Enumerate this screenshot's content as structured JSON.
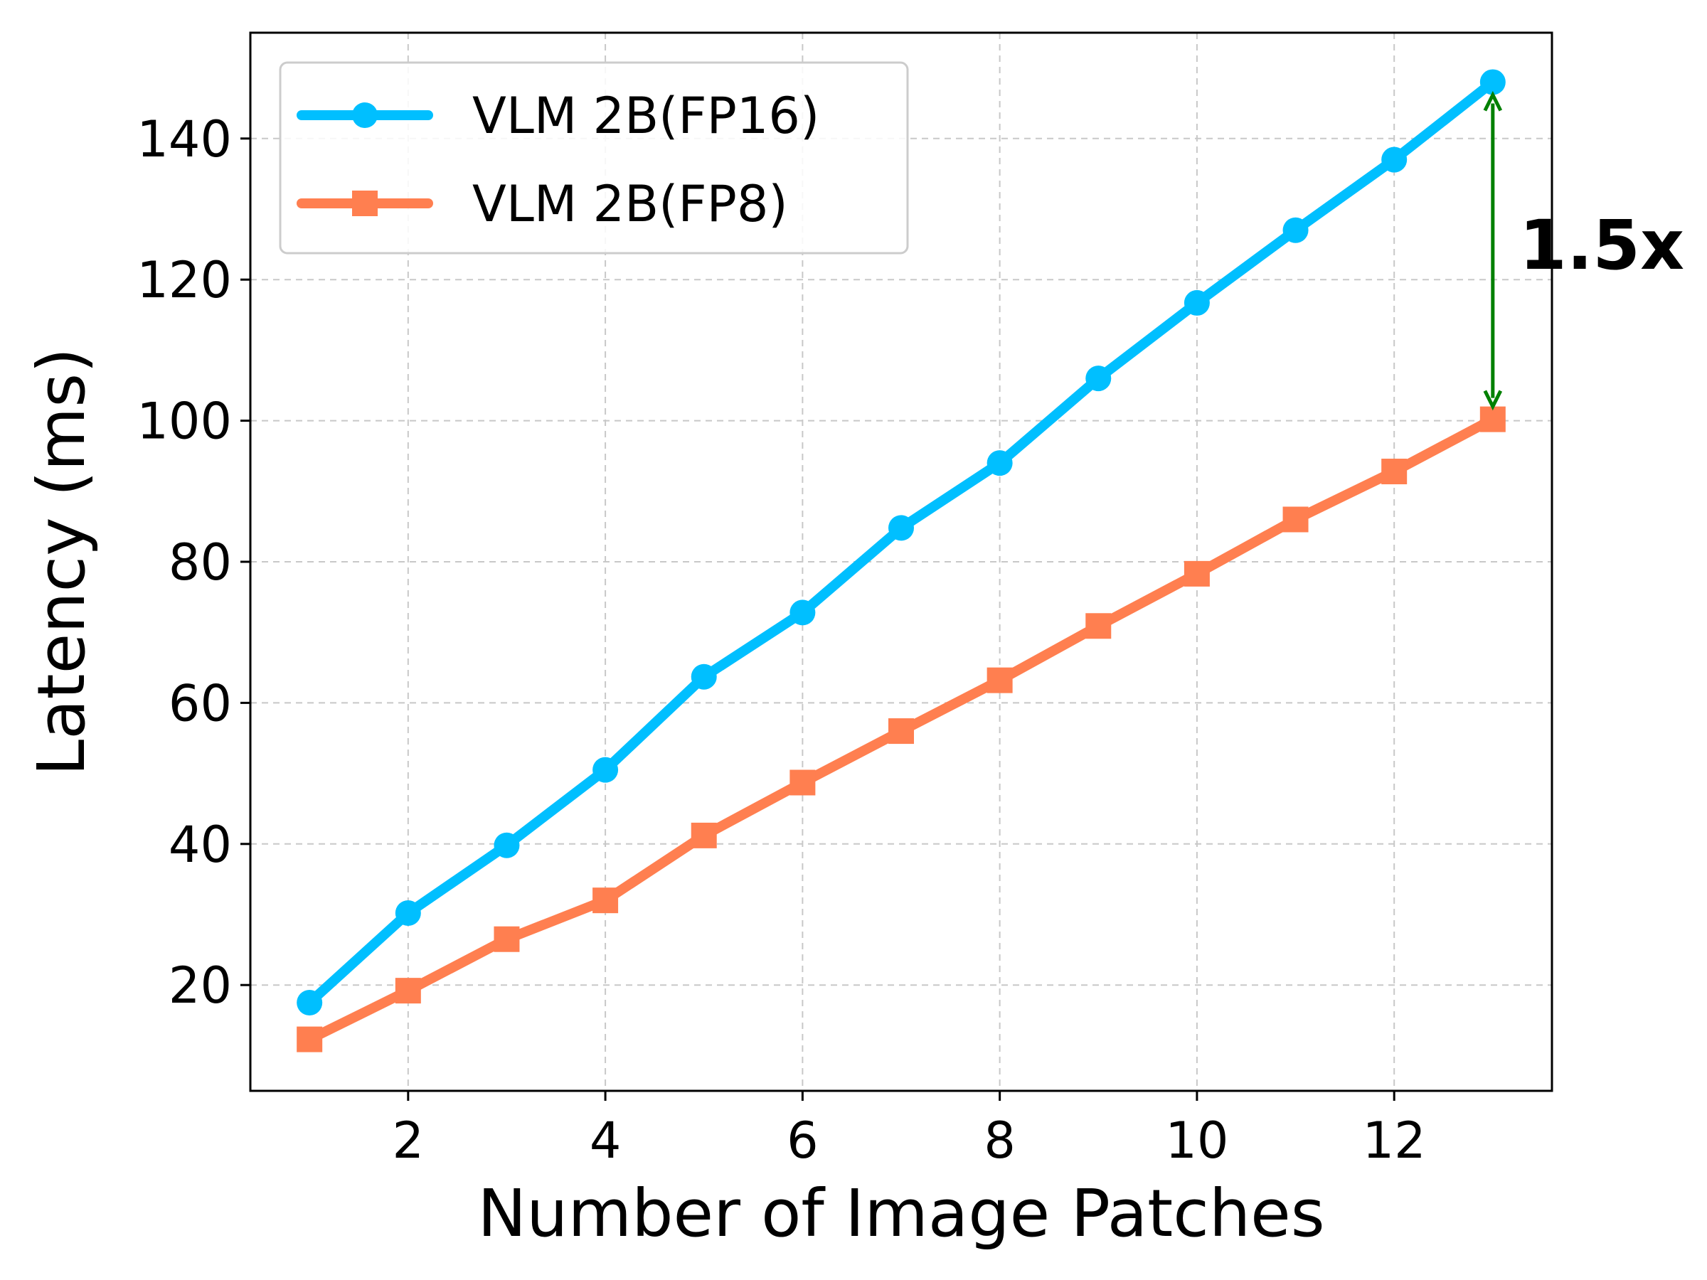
{
  "chart_data": {
    "type": "line",
    "title": "",
    "xlabel": "Number of Image Patches",
    "ylabel": "Latency (ms)",
    "xlim": [
      0.4,
      13.6
    ],
    "ylim": [
      5,
      155
    ],
    "xticks": [
      2,
      4,
      6,
      8,
      10,
      12
    ],
    "yticks": [
      20,
      40,
      60,
      80,
      100,
      120,
      140
    ],
    "grid": true,
    "legend_position": "top-left",
    "x": [
      1,
      2,
      3,
      4,
      5,
      6,
      7,
      8,
      9,
      10,
      11,
      12,
      13
    ],
    "series": [
      {
        "name": "VLM 2B(FP16)",
        "marker": "circle",
        "color": "#00bfff",
        "values": [
          17.5,
          30.2,
          39.8,
          50.5,
          63.7,
          72.8,
          84.8,
          94.0,
          106.0,
          116.7,
          127.0,
          137.0,
          148.0
        ]
      },
      {
        "name": "VLM 2B(FP8)",
        "marker": "square",
        "color": "#ff7f50",
        "values": [
          12.3,
          19.2,
          26.5,
          32.0,
          41.2,
          48.7,
          56.0,
          63.2,
          70.9,
          78.3,
          86.0,
          92.8,
          100.2
        ]
      }
    ],
    "annotation": {
      "text": "1.5x",
      "x": 13,
      "y_from": 100.2,
      "y_to": 148.0,
      "arrow_color": "#008000"
    }
  }
}
